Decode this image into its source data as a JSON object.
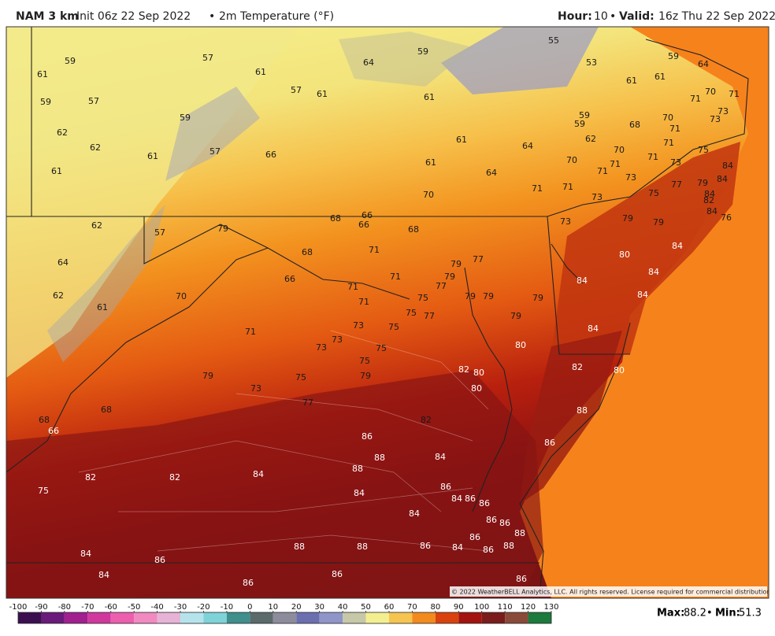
{
  "header": {
    "model": "NAM 3 km",
    "init": "Init 06z 22 Sep 2022",
    "separator": "•",
    "field": "2m Temperature (°F)",
    "hour_label": "Hour:",
    "hour": 10,
    "valid_label": "Valid:",
    "valid": "16z Thu 22 Sep 2022"
  },
  "map": {
    "labels": [
      59,
      57,
      64,
      59,
      55,
      53,
      59,
      64,
      61,
      61,
      61,
      61,
      59,
      57,
      57,
      61,
      61,
      70,
      71,
      71,
      59,
      59,
      59,
      68,
      70,
      71,
      73,
      73,
      62,
      62,
      61,
      62,
      64,
      70,
      71,
      75,
      61,
      57,
      66,
      70,
      71,
      71,
      71,
      73,
      84,
      61,
      61,
      64,
      73,
      77,
      79,
      84,
      84,
      82,
      70,
      71,
      71,
      73,
      75,
      84,
      76,
      66,
      68,
      66,
      68,
      62,
      57,
      79,
      73,
      79,
      79,
      68,
      71,
      79,
      77,
      80,
      84,
      64,
      66,
      71,
      79,
      77,
      84,
      84,
      62,
      70,
      71,
      75,
      79,
      79,
      79,
      84,
      61,
      71,
      75,
      77,
      79,
      71,
      73,
      75,
      84,
      73,
      73,
      75,
      80,
      75,
      82,
      80,
      82,
      80,
      79,
      75,
      79,
      80,
      73,
      77,
      68,
      88,
      82,
      68,
      66,
      86,
      86,
      88,
      84,
      88,
      82,
      82,
      84,
      75,
      84,
      86,
      84,
      86,
      86,
      84,
      86,
      86,
      88,
      88,
      88,
      86,
      84,
      86,
      86,
      88,
      84,
      86,
      84,
      86,
      86,
      86
    ]
  },
  "copyright": "© 2022 WeatherBELL Analytics, LLC. All rights reserved. License required for commercial distribution.",
  "colorbar": {
    "ticks": [
      -100,
      -90,
      -80,
      -70,
      -60,
      -50,
      -40,
      -30,
      -20,
      -10,
      0,
      10,
      20,
      30,
      40,
      50,
      60,
      70,
      80,
      90,
      100,
      110,
      120,
      130
    ],
    "colors": [
      "#3b0f4f",
      "#6a1a7a",
      "#a11f8f",
      "#d0389e",
      "#ec5fae",
      "#f08ac0",
      "#e6b3d6",
      "#b5e3ec",
      "#7ed3d8",
      "#3f8f8c",
      "#5b6a6a",
      "#8c8c9c",
      "#6b6fb0",
      "#8f95c8",
      "#c6c8a8",
      "#f3ef90",
      "#f6c450",
      "#f28a1e",
      "#d9420f",
      "#a3130f",
      "#7a1c1c",
      "#8a4a3a",
      "#1c7a3c"
    ]
  },
  "stats": {
    "max_label": "Max:",
    "max": 88.2,
    "min_label": "Min:",
    "min": 51.3
  }
}
